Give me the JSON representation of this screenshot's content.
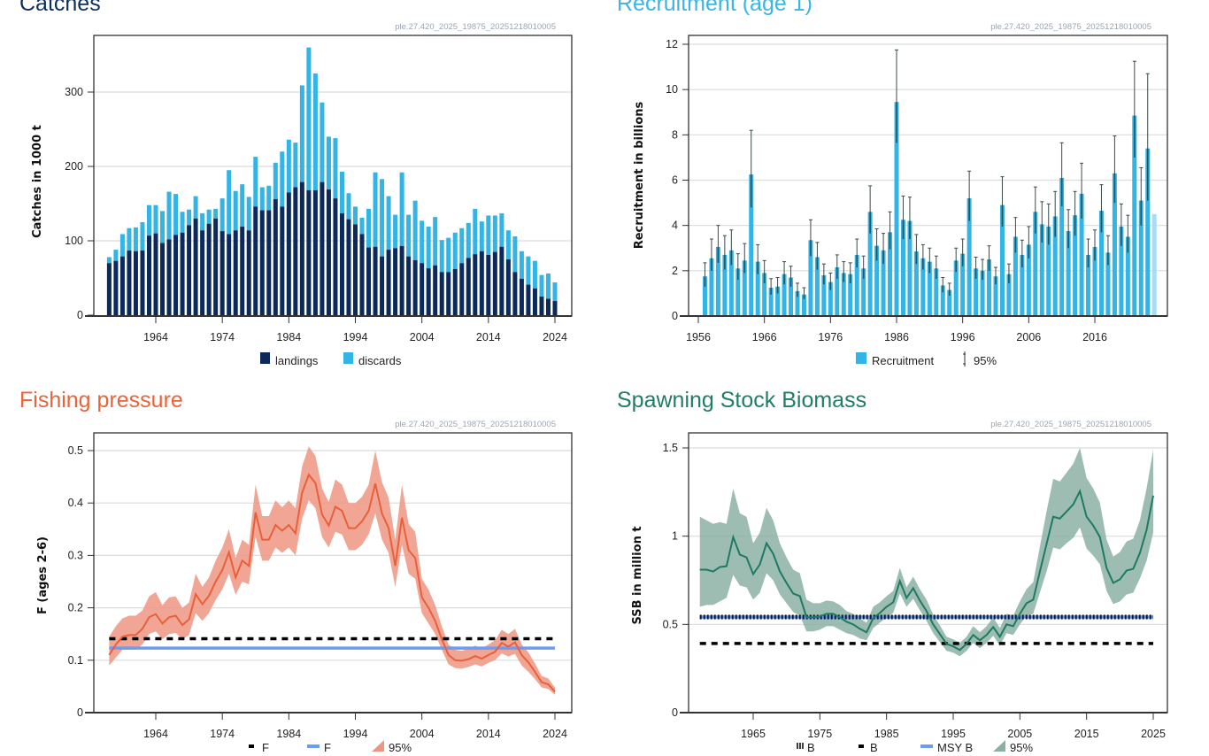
{
  "chart_data": [
    {
      "type": "bar",
      "stacked": true,
      "title": "Catches",
      "watermark": "ple.27.420_2025_19875_20251218010005",
      "ylabel": "Catches in 1000 t",
      "ylim": [
        0,
        370
      ],
      "yticks": [
        "0",
        "100",
        "200",
        "300"
      ],
      "xticks": [
        "1964",
        "1974",
        "1984",
        "1994",
        "2004",
        "2014",
        "2024"
      ],
      "grid": true,
      "legend_position": "bottom",
      "years": [
        1957,
        1958,
        1959,
        1960,
        1961,
        1962,
        1963,
        1964,
        1965,
        1966,
        1967,
        1968,
        1969,
        1970,
        1971,
        1972,
        1973,
        1974,
        1975,
        1976,
        1977,
        1978,
        1979,
        1980,
        1981,
        1982,
        1983,
        1984,
        1985,
        1986,
        1987,
        1988,
        1989,
        1990,
        1991,
        1992,
        1993,
        1994,
        1995,
        1996,
        1997,
        1998,
        1999,
        2000,
        2001,
        2002,
        2003,
        2004,
        2005,
        2006,
        2007,
        2008,
        2009,
        2010,
        2011,
        2012,
        2013,
        2014,
        2015,
        2016,
        2017,
        2018,
        2019,
        2020,
        2021,
        2022,
        2023,
        2024
      ],
      "series": [
        {
          "name": "landings",
          "color": "#0b2a5b",
          "values": [
            70,
            73,
            79,
            87,
            86,
            87,
            107,
            110,
            97,
            102,
            108,
            111,
            121,
            130,
            114,
            123,
            130,
            113,
            109,
            114,
            119,
            114,
            146,
            141,
            141,
            156,
            146,
            165,
            172,
            179,
            168,
            168,
            179,
            169,
            157,
            137,
            129,
            122,
            109,
            91,
            92,
            79,
            88,
            90,
            93,
            79,
            74,
            70,
            63,
            67,
            58,
            58,
            62,
            70,
            77,
            82,
            86,
            81,
            85,
            92,
            75,
            58,
            49,
            41,
            36,
            25,
            22,
            19
          ]
        },
        {
          "name": "discards",
          "color": "#33b4e6",
          "values": [
            8,
            15,
            30,
            30,
            32,
            38,
            41,
            38,
            43,
            64,
            55,
            28,
            21,
            30,
            23,
            19,
            13,
            44,
            86,
            53,
            57,
            45,
            67,
            31,
            33,
            49,
            74,
            71,
            60,
            130,
            192,
            157,
            107,
            71,
            81,
            56,
            35,
            24,
            22,
            52,
            100,
            104,
            72,
            45,
            99,
            56,
            80,
            57,
            56,
            65,
            43,
            46,
            49,
            47,
            47,
            61,
            40,
            53,
            49,
            45,
            39,
            48,
            37,
            38,
            37,
            29,
            34,
            25
          ]
        }
      ]
    },
    {
      "type": "bar",
      "title": "Recruitment (age 1)",
      "watermark": "ple.27.420_2025_19875_20251218010005",
      "ylabel": "Recruitment in billions",
      "ylim": [
        0,
        12
      ],
      "yticks": [
        "0",
        "2",
        "4",
        "6",
        "8",
        "10",
        "12"
      ],
      "xticks": [
        "1956",
        "1966",
        "1976",
        "1986",
        "1996",
        "2006",
        "2016"
      ],
      "grid": true,
      "legend_position": "bottom",
      "legend": [
        "Recruitment",
        "95%"
      ],
      "colors": {
        "bar": "#33b4e6",
        "bar_last": "#a6dcf5",
        "ci": "#3a4a4a"
      },
      "years": [
        1957,
        1958,
        1959,
        1960,
        1961,
        1962,
        1963,
        1964,
        1965,
        1966,
        1967,
        1968,
        1969,
        1970,
        1971,
        1972,
        1973,
        1974,
        1975,
        1976,
        1977,
        1978,
        1979,
        1980,
        1981,
        1982,
        1983,
        1984,
        1985,
        1986,
        1987,
        1988,
        1989,
        1990,
        1991,
        1992,
        1993,
        1994,
        1995,
        1996,
        1997,
        1998,
        1999,
        2000,
        2001,
        2002,
        2003,
        2004,
        2005,
        2006,
        2007,
        2008,
        2009,
        2010,
        2011,
        2012,
        2013,
        2014,
        2015,
        2016,
        2017,
        2018,
        2019,
        2020,
        2021,
        2022,
        2023,
        2024,
        2025
      ],
      "values": [
        1.75,
        2.55,
        3.05,
        2.7,
        2.9,
        2.1,
        2.45,
        6.25,
        2.4,
        1.9,
        1.25,
        1.3,
        1.85,
        1.7,
        1.1,
        0.95,
        3.35,
        2.6,
        1.8,
        1.5,
        2.15,
        1.9,
        1.85,
        2.7,
        2.1,
        4.6,
        3.1,
        2.9,
        3.7,
        9.45,
        4.25,
        4.2,
        2.85,
        2.55,
        2.4,
        2.1,
        1.35,
        1.15,
        2.45,
        2.75,
        5.2,
        2.1,
        2.0,
        2.5,
        1.75,
        4.9,
        1.85,
        3.5,
        2.7,
        3.15,
        4.6,
        4.05,
        3.95,
        4.4,
        6.1,
        3.75,
        4.45,
        5.4,
        2.7,
        3.05,
        4.65,
        2.8,
        6.3,
        3.95,
        3.5,
        8.85,
        5.1,
        7.4,
        4.5
      ],
      "low": [
        1.3,
        2.0,
        2.35,
        2.05,
        2.25,
        1.6,
        1.9,
        4.8,
        1.85,
        1.45,
        0.95,
        1.0,
        1.4,
        1.3,
        0.85,
        0.75,
        2.65,
        2.05,
        1.4,
        1.15,
        1.65,
        1.5,
        1.45,
        2.15,
        1.65,
        3.65,
        2.45,
        2.3,
        2.95,
        7.65,
        3.4,
        3.4,
        2.3,
        2.05,
        1.9,
        1.65,
        1.05,
        0.9,
        1.95,
        2.2,
        4.2,
        1.65,
        1.6,
        2.0,
        1.4,
        3.95,
        1.45,
        2.8,
        2.15,
        2.55,
        3.65,
        3.25,
        3.15,
        3.5,
        4.85,
        3.0,
        3.55,
        4.3,
        2.15,
        2.45,
        3.7,
        2.25,
        5.0,
        3.1,
        2.8,
        7.0,
        4.0,
        5.1,
        null
      ],
      "high": [
        2.35,
        3.4,
        4.0,
        3.55,
        3.8,
        2.75,
        3.2,
        8.2,
        3.15,
        2.45,
        1.65,
        1.7,
        2.4,
        2.2,
        1.45,
        1.25,
        4.25,
        3.25,
        2.3,
        1.9,
        2.7,
        2.4,
        2.35,
        3.4,
        2.65,
        5.75,
        3.85,
        3.65,
        4.6,
        11.75,
        5.3,
        5.25,
        3.6,
        3.15,
        3.0,
        2.65,
        1.7,
        1.45,
        3.0,
        3.4,
        6.4,
        2.6,
        2.5,
        3.1,
        2.15,
        6.15,
        2.3,
        4.35,
        3.35,
        3.95,
        5.7,
        5.05,
        4.95,
        5.5,
        7.65,
        4.7,
        5.5,
        6.75,
        3.4,
        3.8,
        5.8,
        3.55,
        7.95,
        4.95,
        4.45,
        11.25,
        6.55,
        10.7,
        null
      ]
    },
    {
      "type": "line",
      "title": "Fishing pressure",
      "watermark": "ple.27.420_2025_19875_20251218010005",
      "ylabel": "F (ages 2-6)",
      "ylim": [
        0,
        0.53
      ],
      "yticks": [
        "0",
        "0.1",
        "0.2",
        "0.3",
        "0.4",
        "0.5"
      ],
      "xticks": [
        "1964",
        "1974",
        "1984",
        "1994",
        "2004",
        "2014",
        "2024"
      ],
      "grid": true,
      "legend_position": "bottom",
      "legend": [
        "F",
        "F",
        "95%"
      ],
      "colors": {
        "line": "#e8603a",
        "band": "#ee9682"
      },
      "reference_lines": [
        {
          "label": "F",
          "value": 0.141,
          "style": "dashed",
          "color": "#000000"
        },
        {
          "label": "F",
          "value": 0.123,
          "style": "solid",
          "color": "#6b9cf2"
        }
      ],
      "years": [
        1957,
        1958,
        1959,
        1960,
        1961,
        1962,
        1963,
        1964,
        1965,
        1966,
        1967,
        1968,
        1969,
        1970,
        1971,
        1972,
        1973,
        1974,
        1975,
        1976,
        1977,
        1978,
        1979,
        1980,
        1981,
        1982,
        1983,
        1984,
        1985,
        1986,
        1987,
        1988,
        1989,
        1990,
        1991,
        1992,
        1993,
        1994,
        1995,
        1996,
        1997,
        1998,
        1999,
        2000,
        2001,
        2002,
        2003,
        2004,
        2005,
        2006,
        2007,
        2008,
        2009,
        2010,
        2011,
        2012,
        2013,
        2014,
        2015,
        2016,
        2017,
        2018,
        2019,
        2020,
        2021,
        2022,
        2023,
        2024
      ],
      "values": [
        0.11,
        0.13,
        0.145,
        0.148,
        0.148,
        0.16,
        0.182,
        0.188,
        0.17,
        0.182,
        0.185,
        0.167,
        0.178,
        0.226,
        0.207,
        0.223,
        0.25,
        0.272,
        0.306,
        0.258,
        0.29,
        0.28,
        0.382,
        0.33,
        0.33,
        0.358,
        0.347,
        0.358,
        0.342,
        0.42,
        0.454,
        0.438,
        0.378,
        0.357,
        0.393,
        0.385,
        0.352,
        0.352,
        0.365,
        0.385,
        0.437,
        0.38,
        0.352,
        0.28,
        0.372,
        0.31,
        0.295,
        0.22,
        0.2,
        0.175,
        0.14,
        0.11,
        0.1,
        0.099,
        0.102,
        0.108,
        0.103,
        0.11,
        0.116,
        0.133,
        0.126,
        0.134,
        0.11,
        0.096,
        0.078,
        0.058,
        0.054,
        0.04
      ],
      "low": [
        0.09,
        0.105,
        0.12,
        0.12,
        0.12,
        0.13,
        0.15,
        0.155,
        0.14,
        0.15,
        0.152,
        0.14,
        0.148,
        0.19,
        0.175,
        0.19,
        0.215,
        0.235,
        0.265,
        0.225,
        0.25,
        0.245,
        0.335,
        0.29,
        0.29,
        0.315,
        0.305,
        0.315,
        0.3,
        0.37,
        0.405,
        0.39,
        0.335,
        0.315,
        0.345,
        0.34,
        0.31,
        0.31,
        0.32,
        0.34,
        0.38,
        0.33,
        0.305,
        0.24,
        0.32,
        0.265,
        0.255,
        0.19,
        0.17,
        0.15,
        0.12,
        0.092,
        0.085,
        0.084,
        0.087,
        0.092,
        0.088,
        0.095,
        0.1,
        0.113,
        0.107,
        0.112,
        0.09,
        0.078,
        0.064,
        0.048,
        0.045,
        0.034
      ],
      "high": [
        0.145,
        0.165,
        0.18,
        0.185,
        0.185,
        0.195,
        0.222,
        0.23,
        0.205,
        0.22,
        0.222,
        0.2,
        0.21,
        0.265,
        0.24,
        0.258,
        0.29,
        0.315,
        0.35,
        0.295,
        0.33,
        0.32,
        0.435,
        0.375,
        0.375,
        0.405,
        0.392,
        0.405,
        0.39,
        0.47,
        0.508,
        0.49,
        0.428,
        0.402,
        0.445,
        0.435,
        0.4,
        0.4,
        0.412,
        0.435,
        0.5,
        0.44,
        0.41,
        0.33,
        0.435,
        0.36,
        0.345,
        0.255,
        0.235,
        0.205,
        0.165,
        0.13,
        0.12,
        0.118,
        0.122,
        0.128,
        0.122,
        0.13,
        0.138,
        0.158,
        0.15,
        0.16,
        0.13,
        0.115,
        0.094,
        0.07,
        0.065,
        0.048
      ]
    },
    {
      "type": "line",
      "title": "Spawning Stock Biomass",
      "watermark": "ple.27.420_2025_19875_20251218010005",
      "ylabel": "SSB in million t",
      "ylim": [
        0,
        1.58
      ],
      "yticks": [
        "0",
        "0.5",
        "1",
        "1.5"
      ],
      "xticks": [
        "1965",
        "1975",
        "1985",
        "1995",
        "2005",
        "2015",
        "2025"
      ],
      "grid": true,
      "legend_position": "bottom",
      "legend": [
        "B",
        "B",
        "MSY B",
        "95%"
      ],
      "colors": {
        "line": "#1d7a63",
        "band": "#8cb0a4"
      },
      "reference_lines": [
        {
          "label": "B",
          "value": 0.542,
          "style": "dotted",
          "color": "#000000"
        },
        {
          "label": "B",
          "value": 0.392,
          "style": "dashed",
          "color": "#000000"
        },
        {
          "label": "MSY B",
          "value": 0.542,
          "style": "solid",
          "color": "#6b9cf2"
        }
      ],
      "years": [
        1957,
        1958,
        1959,
        1960,
        1961,
        1962,
        1963,
        1964,
        1965,
        1966,
        1967,
        1968,
        1969,
        1970,
        1971,
        1972,
        1973,
        1974,
        1975,
        1976,
        1977,
        1978,
        1979,
        1980,
        1981,
        1982,
        1983,
        1984,
        1985,
        1986,
        1987,
        1988,
        1989,
        1990,
        1991,
        1992,
        1993,
        1994,
        1995,
        1996,
        1997,
        1998,
        1999,
        2000,
        2001,
        2002,
        2003,
        2004,
        2005,
        2006,
        2007,
        2008,
        2009,
        2010,
        2011,
        2012,
        2013,
        2014,
        2015,
        2016,
        2017,
        2018,
        2019,
        2020,
        2021,
        2022,
        2023,
        2024,
        2025
      ],
      "values": [
        0.81,
        0.81,
        0.8,
        0.825,
        0.83,
        0.995,
        0.895,
        0.88,
        0.785,
        0.84,
        0.96,
        0.9,
        0.8,
        0.735,
        0.675,
        0.66,
        0.54,
        0.54,
        0.545,
        0.56,
        0.56,
        0.54,
        0.515,
        0.5,
        0.475,
        0.455,
        0.535,
        0.565,
        0.6,
        0.625,
        0.745,
        0.65,
        0.705,
        0.635,
        0.575,
        0.5,
        0.445,
        0.39,
        0.375,
        0.355,
        0.39,
        0.44,
        0.41,
        0.44,
        0.485,
        0.43,
        0.5,
        0.49,
        0.56,
        0.62,
        0.64,
        0.8,
        0.955,
        1.11,
        1.1,
        1.14,
        1.18,
        1.255,
        1.11,
        1.06,
        0.995,
        0.82,
        0.735,
        0.755,
        0.805,
        0.815,
        0.905,
        1.035,
        1.23
      ],
      "low": [
        0.6,
        0.61,
        0.61,
        0.63,
        0.65,
        0.78,
        0.72,
        0.71,
        0.64,
        0.68,
        0.79,
        0.75,
        0.67,
        0.62,
        0.57,
        0.55,
        0.46,
        0.46,
        0.47,
        0.49,
        0.49,
        0.47,
        0.45,
        0.44,
        0.42,
        0.41,
        0.48,
        0.51,
        0.54,
        0.565,
        0.675,
        0.6,
        0.645,
        0.58,
        0.52,
        0.45,
        0.4,
        0.35,
        0.34,
        0.32,
        0.35,
        0.395,
        0.365,
        0.395,
        0.435,
        0.38,
        0.45,
        0.44,
        0.5,
        0.55,
        0.56,
        0.68,
        0.8,
        0.935,
        0.925,
        0.96,
        0.99,
        1.05,
        0.93,
        0.89,
        0.84,
        0.69,
        0.615,
        0.63,
        0.67,
        0.68,
        0.76,
        0.86,
        1.02
      ],
      "high": [
        1.11,
        1.09,
        1.07,
        1.08,
        1.07,
        1.27,
        1.13,
        1.11,
        0.96,
        1.02,
        1.16,
        1.09,
        0.96,
        0.88,
        0.81,
        0.79,
        0.64,
        0.62,
        0.62,
        0.635,
        0.63,
        0.61,
        0.575,
        0.56,
        0.535,
        0.51,
        0.6,
        0.625,
        0.66,
        0.69,
        0.82,
        0.71,
        0.77,
        0.7,
        0.64,
        0.555,
        0.495,
        0.43,
        0.415,
        0.395,
        0.43,
        0.49,
        0.455,
        0.49,
        0.54,
        0.48,
        0.56,
        0.55,
        0.63,
        0.7,
        0.74,
        0.94,
        1.14,
        1.325,
        1.31,
        1.36,
        1.41,
        1.5,
        1.33,
        1.27,
        1.19,
        0.98,
        0.885,
        0.91,
        0.97,
        0.985,
        1.09,
        1.27,
        1.49
      ]
    }
  ]
}
